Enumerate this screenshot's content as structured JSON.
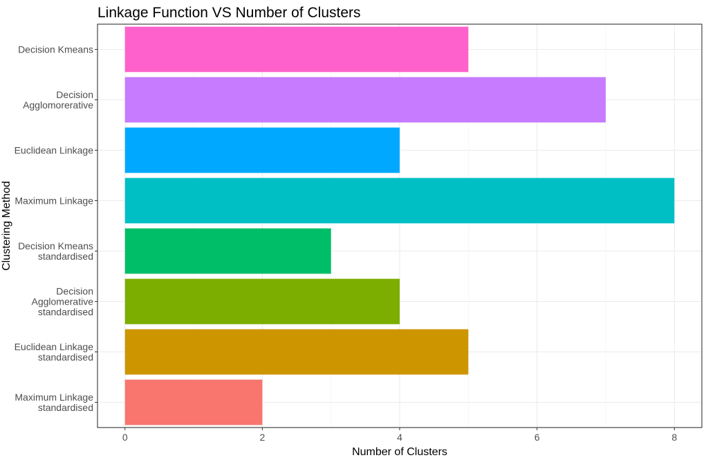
{
  "chart_data": {
    "type": "bar",
    "orientation": "horizontal",
    "title": "Linkage Function VS Number of Clusters",
    "xlabel": "Number of Clusters",
    "ylabel": "Clustering Method",
    "xlim": [
      -0.4,
      8.4
    ],
    "xticks": [
      "0",
      "2",
      "4",
      "6",
      "8"
    ],
    "grid": true,
    "legend": "none",
    "categories": [
      [
        "Decision Kmeans"
      ],
      [
        "Decision",
        "Agglomorerative"
      ],
      [
        "Euclidean Linkage"
      ],
      [
        "Maximum Linkage"
      ],
      [
        "Decision Kmeans",
        "standardised"
      ],
      [
        "Decision",
        "Agglomerative",
        "standardised"
      ],
      [
        "Euclidean Linkage",
        "standardised"
      ],
      [
        "Maximum Linkage",
        "standardised"
      ]
    ],
    "values": [
      5,
      7,
      4,
      8,
      3,
      4,
      5,
      2
    ],
    "colors": [
      "#FF61CC",
      "#C77CFF",
      "#00A9FF",
      "#00BFC4",
      "#00BE67",
      "#7CAE00",
      "#CD9600",
      "#F8766D"
    ]
  }
}
